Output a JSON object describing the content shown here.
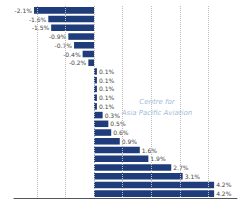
{
  "chart_data": {
    "type": "bar",
    "orientation": "horizontal",
    "categories": [
      null,
      null,
      null,
      null,
      null,
      null,
      null,
      null,
      null,
      null,
      null,
      null,
      null,
      null,
      null,
      null,
      null,
      null,
      null,
      null,
      null,
      null
    ],
    "values": [
      -2.1,
      -1.6,
      -1.5,
      -0.9,
      -0.7,
      -0.4,
      -0.2,
      0.1,
      0.1,
      0.1,
      0.1,
      0.1,
      0.3,
      0.5,
      0.6,
      0.9,
      1.6,
      1.9,
      2.7,
      3.1,
      4.2,
      4.2
    ],
    "value_labels": [
      "-2.1%",
      "-1.6%",
      "-1.5%",
      "-0.9%",
      "-0.7%",
      "-0.4%",
      "-0.2%",
      "0.1%",
      "0.1%",
      "0.1%",
      "0.1%",
      "0.1%",
      "0.3%",
      "0.5%",
      "0.6%",
      "0.9%",
      "1.6%",
      "1.9%",
      "2.7%",
      "3.1%",
      "4.2%",
      "4.2%"
    ],
    "data_labels": true,
    "color": "#1f3d7a",
    "xlim": [
      -2.8,
      5.0
    ],
    "xticks": [
      -2,
      -1,
      0,
      1,
      2,
      3,
      4
    ],
    "grid": true,
    "tick_labels": false,
    "annotations": [
      "Centre for",
      "Asia Pacific Aviation"
    ]
  }
}
